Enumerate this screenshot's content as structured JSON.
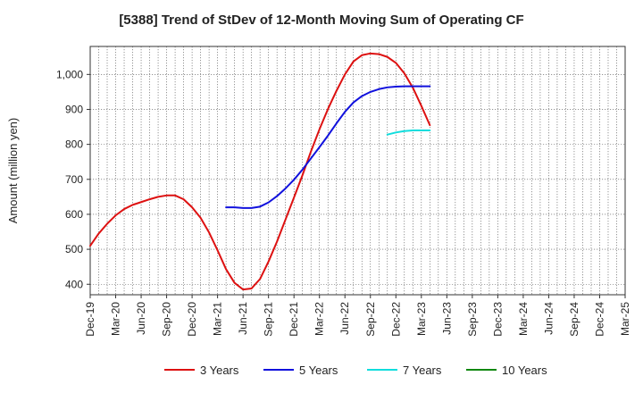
{
  "chart_data": {
    "type": "line",
    "title": "[5388]  Trend of StDev of 12-Month Moving Sum of Operating CF",
    "xlabel": "",
    "ylabel": "Amount (million yen)",
    "ylim": [
      370,
      1080
    ],
    "yticks": [
      400,
      500,
      600,
      700,
      800,
      900,
      1000
    ],
    "ytick_labels": [
      "400",
      "500",
      "600",
      "700",
      "800",
      "900",
      "1,000"
    ],
    "x_tick_labels": [
      "Dec-19",
      "Mar-20",
      "Jun-20",
      "Sep-20",
      "Dec-20",
      "Mar-21",
      "Jun-21",
      "Sep-21",
      "Dec-21",
      "Mar-22",
      "Jun-22",
      "Sep-22",
      "Dec-22",
      "Mar-23",
      "Jun-23",
      "Sep-23",
      "Dec-23",
      "Mar-24",
      "Jun-24",
      "Sep-24",
      "Dec-24",
      "Mar-25"
    ],
    "grid": true,
    "legend_position": "bottom",
    "series": [
      {
        "name": "3 Years",
        "color": "#dd1111",
        "points": [
          [
            0,
            510
          ],
          [
            1,
            545
          ],
          [
            2,
            573
          ],
          [
            3,
            597
          ],
          [
            4,
            615
          ],
          [
            5,
            627
          ],
          [
            6,
            635
          ],
          [
            7,
            643
          ],
          [
            8,
            650
          ],
          [
            9,
            654
          ],
          [
            10,
            654
          ],
          [
            11,
            643
          ],
          [
            12,
            620
          ],
          [
            13,
            590
          ],
          [
            14,
            548
          ],
          [
            15,
            497
          ],
          [
            16,
            443
          ],
          [
            17,
            404
          ],
          [
            18,
            385
          ],
          [
            19,
            388
          ],
          [
            20,
            415
          ],
          [
            21,
            465
          ],
          [
            22,
            522
          ],
          [
            23,
            585
          ],
          [
            24,
            648
          ],
          [
            25,
            712
          ],
          [
            26,
            780
          ],
          [
            27,
            843
          ],
          [
            28,
            901
          ],
          [
            29,
            953
          ],
          [
            30,
            1000
          ],
          [
            31,
            1037
          ],
          [
            32,
            1055
          ],
          [
            33,
            1060
          ],
          [
            34,
            1058
          ],
          [
            35,
            1050
          ],
          [
            36,
            1033
          ],
          [
            37,
            1003
          ],
          [
            38,
            962
          ],
          [
            39,
            910
          ],
          [
            40,
            855
          ]
        ]
      },
      {
        "name": "5 Years",
        "color": "#1111dd",
        "points": [
          [
            16,
            620
          ],
          [
            17,
            620
          ],
          [
            18,
            618
          ],
          [
            19,
            618
          ],
          [
            20,
            622
          ],
          [
            21,
            634
          ],
          [
            22,
            652
          ],
          [
            23,
            674
          ],
          [
            24,
            699
          ],
          [
            25,
            728
          ],
          [
            26,
            760
          ],
          [
            27,
            792
          ],
          [
            28,
            825
          ],
          [
            29,
            860
          ],
          [
            30,
            893
          ],
          [
            31,
            920
          ],
          [
            32,
            938
          ],
          [
            33,
            950
          ],
          [
            34,
            958
          ],
          [
            35,
            963
          ],
          [
            36,
            965
          ],
          [
            37,
            966
          ],
          [
            38,
            966
          ],
          [
            39,
            966
          ],
          [
            40,
            966
          ]
        ]
      },
      {
        "name": "7 Years",
        "color": "#11dddd",
        "points": [
          [
            35,
            828
          ],
          [
            36,
            834
          ],
          [
            37,
            838
          ],
          [
            38,
            840
          ],
          [
            39,
            840
          ],
          [
            40,
            840
          ]
        ]
      },
      {
        "name": "10 Years",
        "color": "#118811",
        "points": []
      }
    ]
  }
}
